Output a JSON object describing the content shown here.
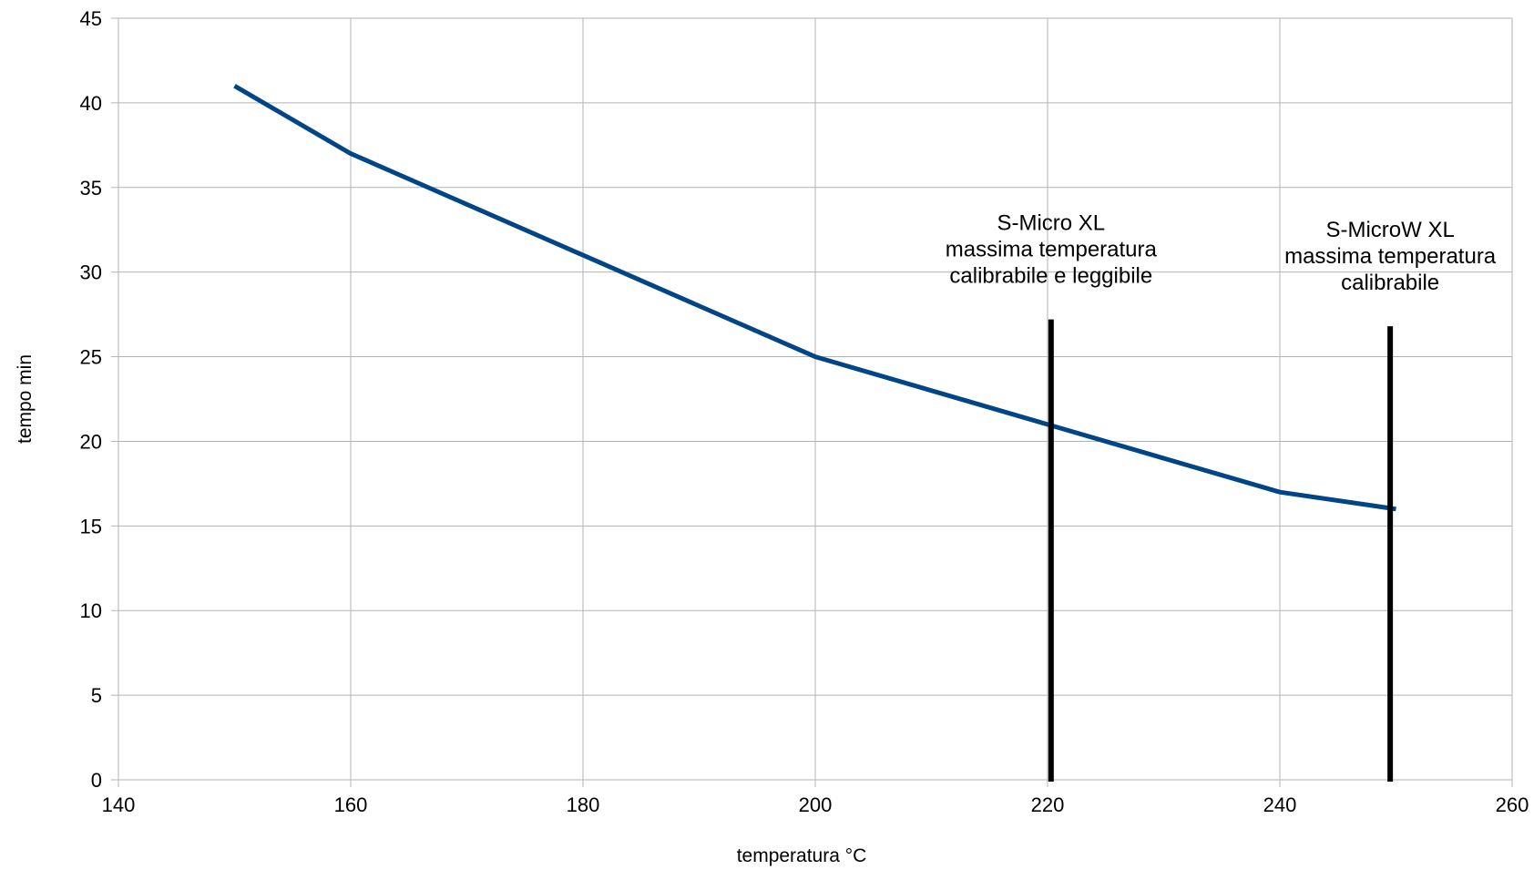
{
  "chart_data": {
    "type": "line",
    "title": "",
    "xlabel": "temperatura °C",
    "ylabel": "tempo min",
    "xlim": [
      140,
      260
    ],
    "ylim": [
      0,
      45
    ],
    "x_ticks": [
      140,
      160,
      180,
      200,
      220,
      240,
      260
    ],
    "y_ticks": [
      0,
      5,
      10,
      15,
      20,
      25,
      30,
      35,
      40,
      45
    ],
    "grid": true,
    "legend": "none",
    "series": [
      {
        "color": "#004586",
        "x": [
          150,
          160,
          180,
          200,
          220,
          240,
          250
        ],
        "y": [
          41,
          37,
          31,
          25,
          21,
          17,
          16
        ]
      }
    ],
    "markers": [
      {
        "x": 220.3,
        "y_range": [
          0,
          27.2
        ],
        "color": "#000000",
        "label_lines": [
          "S-Micro XL",
          "massima temperatura",
          "calibrabile e leggibile"
        ]
      },
      {
        "x": 249.5,
        "y_range": [
          0,
          26.8
        ],
        "color": "#000000",
        "label_lines": [
          "S-MicroW XL",
          "massima temperatura",
          "calibrabile"
        ]
      }
    ]
  }
}
